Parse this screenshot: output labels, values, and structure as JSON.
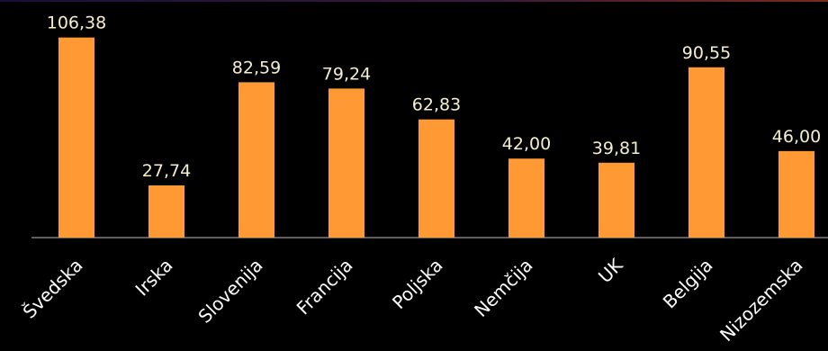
{
  "chart_data": {
    "type": "bar",
    "categories": [
      "Švedska",
      "Irska",
      "Slovenija",
      "Francija",
      "Poljska",
      "Nemčija",
      "UK",
      "Belgija",
      "Nizozemska"
    ],
    "values": [
      106.38,
      27.74,
      82.59,
      79.24,
      62.83,
      42.0,
      39.81,
      90.55,
      46.0
    ],
    "data_labels": [
      "106,38",
      "27,74",
      "82,59",
      "79,24",
      "62,83",
      "42,00",
      "39,81",
      "90,55",
      "46,00"
    ],
    "ylim": [
      0,
      120
    ],
    "grid": false,
    "colors": {
      "background": "#000000",
      "bar": "#FF9933",
      "label": "#FFFFFF",
      "value_label": "#F5EFCF",
      "axis": "#BBBBBB"
    }
  }
}
